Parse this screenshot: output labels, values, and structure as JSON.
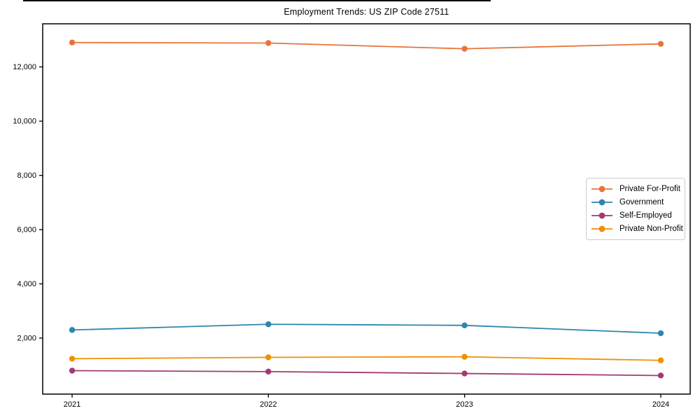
{
  "chart_data": {
    "type": "line",
    "title": "Employment Trends: US ZIP Code 27511",
    "categories": [
      "2021",
      "2022",
      "2023",
      "2024"
    ],
    "series": [
      {
        "name": "Private For-Profit",
        "color": "#E8743B",
        "values": [
          12900,
          12880,
          12670,
          12850
        ]
      },
      {
        "name": "Government",
        "color": "#2E86AB",
        "values": [
          2300,
          2510,
          2470,
          2180
        ]
      },
      {
        "name": "Self-Employed",
        "color": "#A23B72",
        "values": [
          800,
          765,
          695,
          620
        ]
      },
      {
        "name": "Private Non-Profit",
        "color": "#F18F01",
        "values": [
          1240,
          1290,
          1310,
          1180
        ]
      }
    ],
    "xlabel": "",
    "ylabel": "",
    "ylim": [
      -65,
      13590
    ],
    "yticks": [
      2000,
      4000,
      6000,
      8000,
      10000,
      12000
    ],
    "ytick_labels": [
      "2,000",
      "4,000",
      "6,000",
      "8,000",
      "10,000",
      "12,000"
    ],
    "grid": false,
    "legend_position": "right",
    "marker": "circle",
    "spine_color": "#000000",
    "background_color": "#ffffff"
  }
}
